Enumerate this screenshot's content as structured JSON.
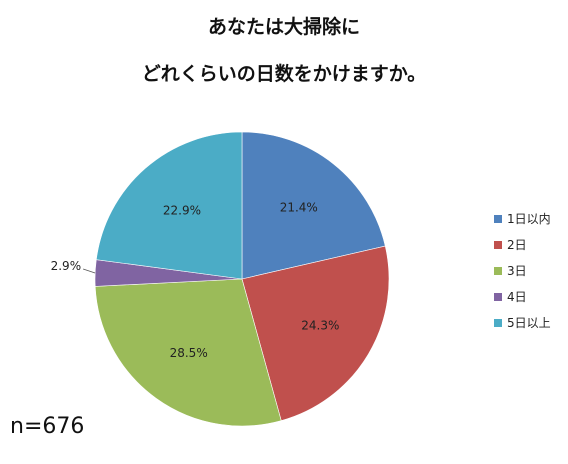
{
  "chart_data": {
    "type": "pie",
    "title": "あなたは大掃除に",
    "subtitle": "どれくらいの日数をかけますか。",
    "categories": [
      "1日以内",
      "2日",
      "3日",
      "4日",
      "5日以上"
    ],
    "values": [
      21.4,
      24.3,
      28.5,
      2.9,
      22.9
    ],
    "value_labels": [
      "21.4%",
      "24.3%",
      "28.5%",
      "2.9%",
      "22.9%"
    ],
    "colors": [
      "#4F81BD",
      "#C0504D",
      "#9BBB59",
      "#8064A2",
      "#4BACC6"
    ],
    "legend_position": "right",
    "start_angle": "12 o'clock",
    "direction": "clockwise"
  },
  "annotation": "n=676"
}
